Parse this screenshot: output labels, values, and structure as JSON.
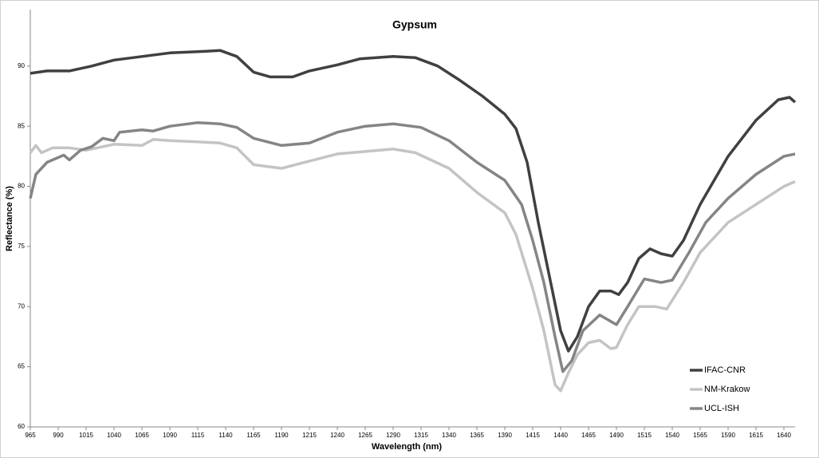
{
  "chart_data": {
    "type": "line",
    "title": "Gypsum",
    "xlabel": "Wavelength (nm)",
    "ylabel": "Reflectance (%)",
    "xlim": [
      965,
      1650
    ],
    "ylim": [
      60,
      94.7
    ],
    "xticks": [
      965,
      990,
      1015,
      1040,
      1065,
      1090,
      1115,
      1140,
      1165,
      1190,
      1215,
      1240,
      1265,
      1290,
      1315,
      1340,
      1365,
      1390,
      1415,
      1440,
      1465,
      1490,
      1515,
      1540,
      1565,
      1590,
      1615,
      1640
    ],
    "yticks": [
      60,
      65,
      70,
      75,
      80,
      85,
      90
    ],
    "legend": "lower right",
    "series": [
      {
        "name": "IFAC-CNR",
        "color": "#404040",
        "x": [
          965,
          980,
          1000,
          1020,
          1040,
          1065,
          1090,
          1115,
          1135,
          1150,
          1165,
          1180,
          1200,
          1215,
          1240,
          1260,
          1290,
          1310,
          1330,
          1350,
          1370,
          1390,
          1400,
          1410,
          1420,
          1430,
          1440,
          1447,
          1455,
          1465,
          1475,
          1485,
          1492,
          1500,
          1510,
          1520,
          1530,
          1540,
          1550,
          1565,
          1590,
          1615,
          1635,
          1645,
          1650
        ],
        "values": [
          89.4,
          89.6,
          89.6,
          90.0,
          90.5,
          90.8,
          91.1,
          91.2,
          91.3,
          90.8,
          89.5,
          89.1,
          89.1,
          89.6,
          90.1,
          90.6,
          90.8,
          90.7,
          90.0,
          88.8,
          87.5,
          86.0,
          84.8,
          82.0,
          77.0,
          72.5,
          68.0,
          66.3,
          67.5,
          70.0,
          71.3,
          71.3,
          71.0,
          72.0,
          74.0,
          74.8,
          74.4,
          74.2,
          75.5,
          78.5,
          82.5,
          85.5,
          87.2,
          87.4,
          87.0
        ]
      },
      {
        "name": "NM-Krakow",
        "color": "#c4c4c4",
        "x": [
          965,
          970,
          975,
          985,
          1000,
          1015,
          1040,
          1065,
          1075,
          1090,
          1115,
          1135,
          1150,
          1165,
          1190,
          1215,
          1240,
          1265,
          1290,
          1310,
          1340,
          1365,
          1390,
          1400,
          1415,
          1425,
          1435,
          1440,
          1447,
          1455,
          1465,
          1475,
          1485,
          1490,
          1500,
          1510,
          1525,
          1535,
          1550,
          1565,
          1590,
          1615,
          1640,
          1650
        ],
        "values": [
          82.8,
          83.4,
          82.8,
          83.2,
          83.2,
          83.0,
          83.5,
          83.4,
          83.9,
          83.8,
          83.7,
          83.6,
          83.2,
          81.8,
          81.5,
          82.1,
          82.7,
          82.9,
          83.1,
          82.8,
          81.5,
          79.5,
          77.8,
          76.0,
          71.5,
          68.0,
          63.5,
          63.0,
          64.5,
          66.0,
          67.0,
          67.2,
          66.5,
          66.6,
          68.5,
          70.0,
          70.0,
          69.8,
          72.0,
          74.5,
          77.0,
          78.5,
          80.0,
          80.4
        ]
      },
      {
        "name": "UCL-ISH",
        "color": "#858585",
        "x": [
          965,
          970,
          980,
          990,
          995,
          1000,
          1010,
          1020,
          1030,
          1040,
          1045,
          1065,
          1075,
          1090,
          1115,
          1135,
          1150,
          1165,
          1190,
          1215,
          1240,
          1265,
          1290,
          1315,
          1340,
          1365,
          1390,
          1405,
          1415,
          1425,
          1435,
          1442,
          1450,
          1460,
          1475,
          1490,
          1500,
          1515,
          1530,
          1540,
          1555,
          1570,
          1590,
          1615,
          1640,
          1650
        ],
        "values": [
          79.0,
          81.0,
          82.0,
          82.4,
          82.6,
          82.2,
          83.0,
          83.3,
          84.0,
          83.8,
          84.5,
          84.7,
          84.6,
          85.0,
          85.3,
          85.2,
          84.9,
          84.0,
          83.4,
          83.6,
          84.5,
          85.0,
          85.2,
          84.9,
          83.8,
          82.0,
          80.5,
          78.5,
          75.5,
          72.0,
          67.5,
          64.6,
          65.5,
          68.0,
          69.3,
          68.5,
          70.0,
          72.3,
          72.0,
          72.2,
          74.5,
          77.0,
          79.0,
          81.0,
          82.5,
          82.7
        ]
      }
    ]
  }
}
